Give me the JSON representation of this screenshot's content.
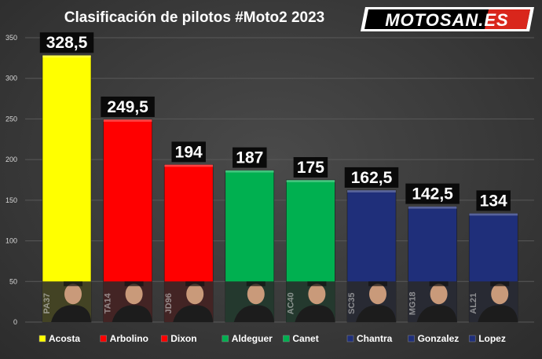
{
  "header": {
    "title": "Clasificación de pilotos #Moto2 2023",
    "logo_text": "MOTOSAN.ES"
  },
  "colors": {
    "yellow": "#ffff00",
    "red": "#ff0000",
    "green": "#00b050",
    "navy": "#1f2f7a",
    "label_bg": "#0a0a0a",
    "axis_text": "#d9d9d9",
    "grid": "#595959"
  },
  "chart_data": {
    "type": "bar",
    "title": "Clasificación de pilotos #Moto2 2023",
    "xlabel": "",
    "ylabel": "",
    "ylim": [
      0,
      350
    ],
    "yticks": [
      0,
      50,
      100,
      150,
      200,
      250,
      300,
      350
    ],
    "grid": true,
    "legend_position": "bottom",
    "categories": [
      "Acosta",
      "Arbolino",
      "Dixon",
      "Aldeguer",
      "Canet",
      "Chantra",
      "Gonzalez",
      "Lopez"
    ],
    "values": [
      328.5,
      249.5,
      194,
      187,
      175,
      162.5,
      142.5,
      134
    ],
    "value_labels": [
      "328,5",
      "249,5",
      "194",
      "187",
      "175",
      "162,5",
      "142,5",
      "134"
    ],
    "bar_colors": [
      "#ffff00",
      "#ff0000",
      "#ff0000",
      "#00b050",
      "#00b050",
      "#1f2f7a",
      "#1f2f7a",
      "#1f2f7a"
    ],
    "rider_numbers": [
      "PA37",
      "TA14",
      "JD96",
      "",
      "AC40",
      "SC35",
      "MG18",
      "AL21"
    ]
  }
}
